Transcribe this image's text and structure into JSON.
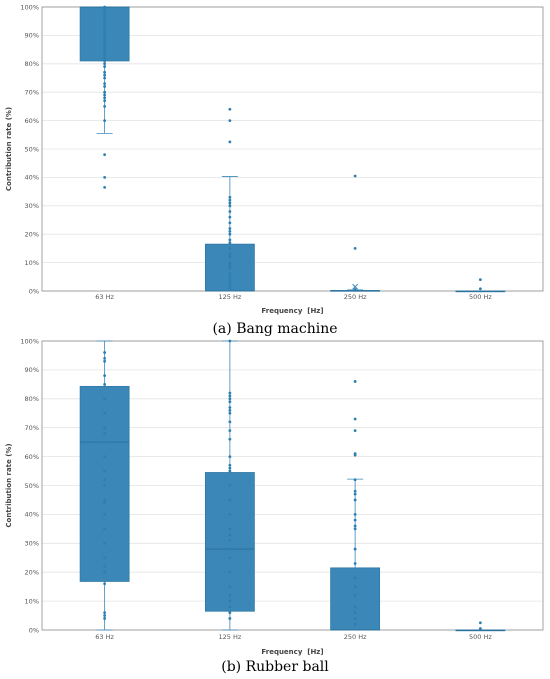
{
  "chart_data": [
    {
      "type": "box",
      "caption": "(a) Bang machine",
      "xlabel": "Frequency  [Hz]",
      "ylabel": "Contribution rate (%)",
      "ylim": [
        0,
        100
      ],
      "yticks": [
        "0%",
        "10%",
        "20%",
        "30%",
        "40%",
        "50%",
        "60%",
        "70%",
        "80%",
        "90%",
        "100%"
      ],
      "categories": [
        "63 Hz",
        "125 Hz",
        "250 Hz",
        "500 Hz"
      ],
      "color": "#3b88b8",
      "grid": true,
      "boxes": [
        {
          "q1": 81,
          "median": 100,
          "q3": 100,
          "whisker_low": 55.5,
          "whisker_high": 100,
          "mean": null,
          "points": [
            100,
            99,
            98,
            97,
            96,
            95,
            94,
            93,
            92,
            91,
            90,
            89,
            88,
            87,
            86,
            85,
            84,
            83,
            82,
            81,
            80,
            79,
            77,
            76,
            75,
            73,
            72,
            70,
            69,
            68,
            67,
            65,
            60,
            48,
            40,
            36.5
          ]
        },
        {
          "q1": 0,
          "median": 0,
          "q3": 16.5,
          "whisker_low": 0,
          "whisker_high": 40.3,
          "mean": null,
          "points": [
            64,
            60,
            52.5,
            33,
            32,
            31,
            30,
            28,
            26,
            24,
            22,
            21,
            20,
            18,
            17,
            15,
            13,
            12,
            10,
            9,
            8,
            6,
            5,
            4,
            3,
            2,
            1
          ]
        },
        {
          "q1": 0,
          "median": 0,
          "q3": 0.2,
          "whisker_low": 0,
          "whisker_high": 0.4,
          "mean": 1.5,
          "points": [
            40.5,
            15,
            0.5,
            0.2
          ]
        },
        {
          "q1": 0,
          "median": 0,
          "q3": 0,
          "whisker_low": 0,
          "whisker_high": 0,
          "mean": null,
          "points": [
            4,
            0.8
          ]
        }
      ]
    },
    {
      "type": "box",
      "caption": "(b) Rubber ball",
      "xlabel": "Frequency  [Hz]",
      "ylabel": "Contribution rate (%)",
      "ylim": [
        0,
        100
      ],
      "yticks": [
        "0%",
        "10%",
        "20%",
        "30%",
        "40%",
        "50%",
        "60%",
        "70%",
        "80%",
        "90%",
        "100%"
      ],
      "categories": [
        "63 Hz",
        "125 Hz",
        "250 Hz",
        "500 Hz"
      ],
      "color": "#3b88b8",
      "grid": true,
      "boxes": [
        {
          "q1": 16.8,
          "median": 65,
          "q3": 84.3,
          "whisker_low": 0,
          "whisker_high": 100,
          "mean": null,
          "points": [
            96,
            94,
            93,
            88,
            85,
            80,
            75,
            70,
            68,
            65,
            60,
            55,
            52,
            50,
            45,
            44,
            40,
            35,
            30,
            25,
            22,
            20,
            16,
            6,
            5,
            4
          ]
        },
        {
          "q1": 6.5,
          "median": 28,
          "q3": 54.5,
          "whisker_low": 0,
          "whisker_high": 100,
          "mean": null,
          "points": [
            100,
            82,
            81,
            80,
            79,
            77,
            76,
            75,
            72,
            69,
            66,
            60,
            57,
            56,
            55,
            50,
            45,
            40,
            35,
            33,
            31,
            28,
            25,
            20,
            15,
            12,
            10,
            8,
            6,
            4
          ]
        },
        {
          "q1": 0,
          "median": 0,
          "q3": 21.5,
          "whisker_low": 0,
          "whisker_high": 52.2,
          "mean": null,
          "points": [
            86,
            73,
            69,
            61,
            60.5,
            52,
            48,
            47,
            45,
            40,
            38,
            36,
            35,
            28,
            23,
            18,
            15,
            12,
            8,
            6,
            4,
            2
          ]
        },
        {
          "q1": 0,
          "median": 0,
          "q3": 0,
          "whisker_low": 0,
          "whisker_high": 0,
          "mean": null,
          "points": [
            2.5,
            0.5
          ]
        }
      ]
    }
  ]
}
